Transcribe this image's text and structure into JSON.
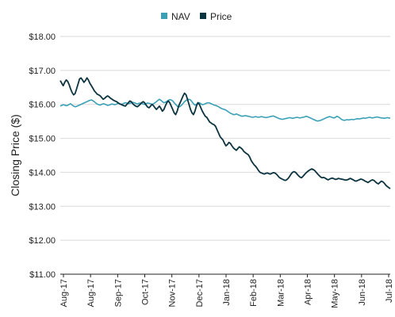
{
  "chart_data": {
    "type": "line",
    "title": "",
    "xlabel": "",
    "ylabel": "Closing Price ($)",
    "ylim": [
      11,
      18
    ],
    "y_ticks": [
      "$11.00",
      "$12.00",
      "$13.00",
      "$14.00",
      "$15.00",
      "$16.00",
      "$17.00",
      "$18.00"
    ],
    "x_ticks": [
      "Aug-17",
      "Aug-17",
      "Sep-17",
      "Oct-17",
      "Nov-17",
      "Dec-17",
      "Jan-18",
      "Feb-18",
      "Mar-18",
      "Apr-18",
      "May-18",
      "Jun-18",
      "Jul-18"
    ],
    "grid": true,
    "legend_position": "top-center",
    "colors": {
      "NAV": "#3aa0b5",
      "Price": "#0b3440",
      "grid": "#d9d9d9",
      "axis": "#222222"
    },
    "series": [
      {
        "name": "NAV",
        "values": [
          15.95,
          15.97,
          15.99,
          15.98,
          15.96,
          15.97,
          16.0,
          16.02,
          15.98,
          15.95,
          15.93,
          15.94,
          15.96,
          15.98,
          16.0,
          16.02,
          16.04,
          16.06,
          16.08,
          16.1,
          16.12,
          16.13,
          16.11,
          16.08,
          16.04,
          16.01,
          15.99,
          15.98,
          16.0,
          16.02,
          16.01,
          15.99,
          15.97,
          15.98,
          16.0,
          16.01,
          16.0,
          15.99,
          16.01,
          16.03,
          16.02,
          16.0,
          16.01,
          16.03,
          16.05,
          16.04,
          16.02,
          16.03,
          16.05,
          16.06,
          16.05,
          16.03,
          16.01,
          16.03,
          16.04,
          16.03,
          16.01,
          16.0,
          16.02,
          16.04,
          16.03,
          16.02,
          16.0,
          16.02,
          16.05,
          16.08,
          16.12,
          16.15,
          16.12,
          16.08,
          16.05,
          16.06,
          16.09,
          16.12,
          16.14,
          16.13,
          16.1,
          16.05,
          16.0,
          15.95,
          15.92,
          15.94,
          15.98,
          16.03,
          16.08,
          16.12,
          16.14,
          16.15,
          16.13,
          16.08,
          16.02,
          15.98,
          16.0,
          16.04,
          16.05,
          16.02,
          15.99,
          16.0,
          16.02,
          16.04,
          16.05,
          16.04,
          16.02,
          16.0,
          15.98,
          15.97,
          15.95,
          15.93,
          15.9,
          15.88,
          15.86,
          15.85,
          15.83,
          15.8,
          15.77,
          15.74,
          15.72,
          15.7,
          15.7,
          15.72,
          15.7,
          15.68,
          15.66,
          15.65,
          15.66,
          15.67,
          15.66,
          15.65,
          15.64,
          15.63,
          15.62,
          15.63,
          15.64,
          15.63,
          15.62,
          15.63,
          15.64,
          15.63,
          15.62,
          15.61,
          15.62,
          15.63,
          15.64,
          15.65,
          15.66,
          15.64,
          15.62,
          15.6,
          15.58,
          15.57,
          15.56,
          15.57,
          15.58,
          15.59,
          15.6,
          15.61,
          15.6,
          15.59,
          15.6,
          15.61,
          15.62,
          15.61,
          15.6,
          15.61,
          15.62,
          15.63,
          15.65,
          15.64,
          15.62,
          15.6,
          15.58,
          15.56,
          15.54,
          15.52,
          15.51,
          15.52,
          15.53,
          15.55,
          15.57,
          15.59,
          15.61,
          15.63,
          15.64,
          15.63,
          15.61,
          15.6,
          15.62,
          15.65,
          15.63,
          15.6,
          15.56,
          15.54,
          15.53,
          15.54,
          15.55,
          15.54,
          15.55,
          15.56,
          15.55,
          15.56,
          15.57,
          15.58,
          15.57,
          15.58,
          15.59,
          15.6,
          15.59,
          15.6,
          15.61,
          15.62,
          15.61,
          15.6,
          15.61,
          15.62,
          15.63,
          15.62,
          15.61,
          15.6,
          15.6,
          15.59,
          15.6,
          15.61,
          15.6,
          15.6
        ]
      },
      {
        "name": "Price",
        "values": [
          16.7,
          16.62,
          16.55,
          16.65,
          16.72,
          16.68,
          16.58,
          16.45,
          16.35,
          16.28,
          16.32,
          16.45,
          16.6,
          16.75,
          16.78,
          16.72,
          16.65,
          16.7,
          16.78,
          16.72,
          16.62,
          16.55,
          16.48,
          16.4,
          16.35,
          16.3,
          16.28,
          16.25,
          16.2,
          16.15,
          16.18,
          16.22,
          16.25,
          16.22,
          16.18,
          16.15,
          16.12,
          16.1,
          16.08,
          16.05,
          16.02,
          16.0,
          15.98,
          15.96,
          15.95,
          16.0,
          16.05,
          16.1,
          16.08,
          16.02,
          15.98,
          15.95,
          15.93,
          15.96,
          16.0,
          16.05,
          16.08,
          16.05,
          15.98,
          15.92,
          15.9,
          15.95,
          16.0,
          15.96,
          15.9,
          15.85,
          15.9,
          15.95,
          15.88,
          15.8,
          15.85,
          15.95,
          16.05,
          16.1,
          16.05,
          15.95,
          15.85,
          15.75,
          15.7,
          15.8,
          15.95,
          16.05,
          16.15,
          16.25,
          16.33,
          16.28,
          16.15,
          16.0,
          15.85,
          15.75,
          15.7,
          15.8,
          15.95,
          16.05,
          16.0,
          15.9,
          15.8,
          15.72,
          15.65,
          15.62,
          15.55,
          15.48,
          15.45,
          15.42,
          15.4,
          15.35,
          15.25,
          15.15,
          15.05,
          15.0,
          14.95,
          14.85,
          14.78,
          14.82,
          14.88,
          14.85,
          14.78,
          14.72,
          14.68,
          14.65,
          14.7,
          14.75,
          14.72,
          14.68,
          14.62,
          14.58,
          14.55,
          14.52,
          14.45,
          14.35,
          14.28,
          14.22,
          14.18,
          14.12,
          14.05,
          14.0,
          13.98,
          13.96,
          13.95,
          13.97,
          13.98,
          13.96,
          13.95,
          13.97,
          13.99,
          13.98,
          13.95,
          13.9,
          13.85,
          13.82,
          13.8,
          13.78,
          13.76,
          13.78,
          13.82,
          13.88,
          13.95,
          14.0,
          14.02,
          14.0,
          13.95,
          13.9,
          13.86,
          13.84,
          13.88,
          13.93,
          13.98,
          14.02,
          14.05,
          14.08,
          14.1,
          14.08,
          14.05,
          14.0,
          13.95,
          13.9,
          13.86,
          13.84,
          13.85,
          13.83,
          13.8,
          13.78,
          13.8,
          13.82,
          13.83,
          13.81,
          13.79,
          13.8,
          13.82,
          13.81,
          13.8,
          13.79,
          13.78,
          13.77,
          13.78,
          13.8,
          13.82,
          13.8,
          13.78,
          13.75,
          13.74,
          13.76,
          13.78,
          13.8,
          13.79,
          13.77,
          13.74,
          13.72,
          13.7,
          13.73,
          13.76,
          13.78,
          13.76,
          13.72,
          13.68,
          13.66,
          13.7,
          13.74,
          13.72,
          13.68,
          13.62,
          13.58,
          13.55,
          13.52
        ]
      }
    ]
  }
}
